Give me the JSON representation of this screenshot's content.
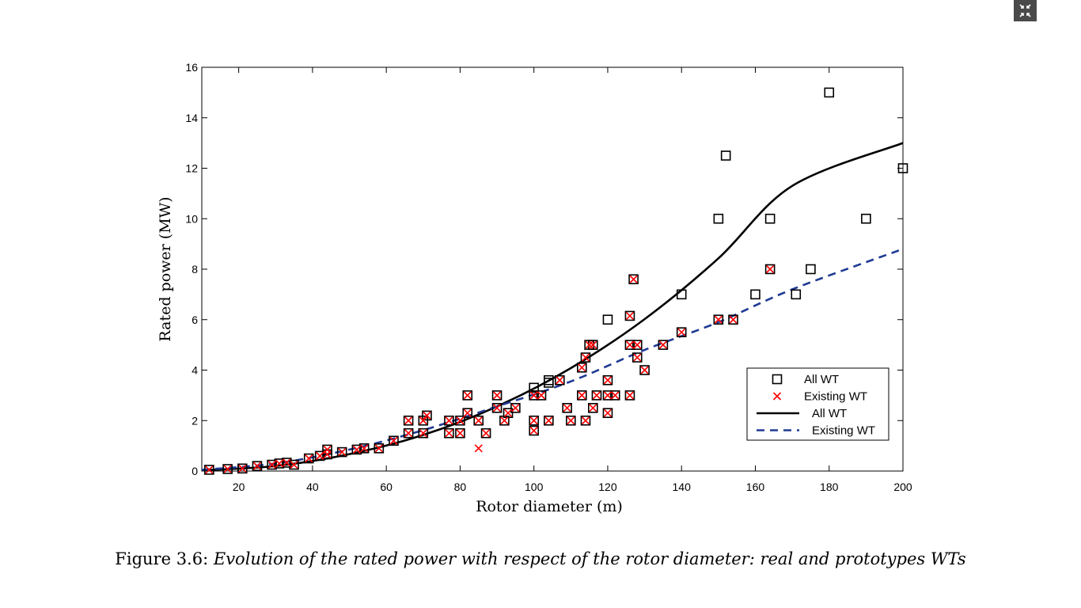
{
  "caption": {
    "prefix": "Figure 3.6:",
    "text": "Evolution of the rated power with respect of the rotor diameter: real and prototypes WTs"
  },
  "toolbar": {
    "exit_fullscreen_icon": "exit-fullscreen-icon"
  },
  "chart_data": {
    "type": "scatter",
    "xlabel": "Rotor diameter (m)",
    "ylabel": "Rated power (MW)",
    "xlim": [
      10,
      200
    ],
    "ylim": [
      0,
      16
    ],
    "xticks": [
      20,
      40,
      60,
      80,
      100,
      120,
      140,
      160,
      180,
      200
    ],
    "yticks": [
      0,
      2,
      4,
      6,
      8,
      10,
      12,
      14,
      16
    ],
    "grid": false,
    "legend_position": "lower-right",
    "legend": [
      {
        "label": "All WT",
        "marker": "square",
        "color": "#000000"
      },
      {
        "label": "Existing WT",
        "marker": "x",
        "color": "#ff0000"
      },
      {
        "label": "All WT",
        "marker": "line-solid",
        "color": "#000000"
      },
      {
        "label": "Existing WT",
        "marker": "line-dashed",
        "color": "#1f3a93"
      }
    ],
    "series": [
      {
        "name": "All WT",
        "kind": "points",
        "marker": "square",
        "color": "#000000",
        "points": [
          [
            12,
            0.05
          ],
          [
            17,
            0.08
          ],
          [
            21,
            0.1
          ],
          [
            25,
            0.2
          ],
          [
            29,
            0.25
          ],
          [
            31,
            0.3
          ],
          [
            33,
            0.33
          ],
          [
            35,
            0.25
          ],
          [
            39,
            0.5
          ],
          [
            42,
            0.6
          ],
          [
            44,
            0.85
          ],
          [
            44,
            0.66
          ],
          [
            48,
            0.75
          ],
          [
            52,
            0.85
          ],
          [
            54,
            0.9
          ],
          [
            58,
            0.9
          ],
          [
            62,
            1.2
          ],
          [
            66,
            1.5
          ],
          [
            66,
            2.0
          ],
          [
            70,
            1.5
          ],
          [
            70,
            2.0
          ],
          [
            71,
            2.2
          ],
          [
            77,
            1.5
          ],
          [
            77,
            2.0
          ],
          [
            80,
            2.0
          ],
          [
            80,
            1.5
          ],
          [
            82,
            3.0
          ],
          [
            82,
            2.3
          ],
          [
            85,
            2.0
          ],
          [
            87,
            1.5
          ],
          [
            90,
            2.5
          ],
          [
            90,
            3.0
          ],
          [
            92,
            2.0
          ],
          [
            93,
            2.3
          ],
          [
            95,
            2.5
          ],
          [
            100,
            3.0
          ],
          [
            100,
            3.3
          ],
          [
            100,
            2.0
          ],
          [
            100,
            1.6
          ],
          [
            102,
            3.0
          ],
          [
            104,
            3.5
          ],
          [
            104,
            3.6
          ],
          [
            104,
            2.0
          ],
          [
            107,
            3.6
          ],
          [
            109,
            2.5
          ],
          [
            110,
            2.0
          ],
          [
            113,
            4.1
          ],
          [
            113,
            3.0
          ],
          [
            114,
            2.0
          ],
          [
            114,
            4.5
          ],
          [
            115,
            5.0
          ],
          [
            116,
            5.0
          ],
          [
            116,
            2.5
          ],
          [
            117,
            3.0
          ],
          [
            120,
            6.0
          ],
          [
            120,
            3.6
          ],
          [
            120,
            3.0
          ],
          [
            120,
            2.3
          ],
          [
            122,
            3.0
          ],
          [
            126,
            6.15
          ],
          [
            126,
            5.0
          ],
          [
            126,
            3.0
          ],
          [
            127,
            7.6
          ],
          [
            128,
            5.0
          ],
          [
            128,
            4.5
          ],
          [
            130,
            4.0
          ],
          [
            135,
            5.0
          ],
          [
            140,
            7.0
          ],
          [
            140,
            5.5
          ],
          [
            150,
            10.0
          ],
          [
            150,
            6.0
          ],
          [
            152,
            12.5
          ],
          [
            154,
            6.0
          ],
          [
            160,
            7.0
          ],
          [
            164,
            10.0
          ],
          [
            164,
            8.0
          ],
          [
            171,
            7.0
          ],
          [
            175,
            8.0
          ],
          [
            180,
            15.0
          ],
          [
            190,
            10.0
          ],
          [
            200,
            12.0
          ]
        ]
      },
      {
        "name": "Existing WT",
        "kind": "points",
        "marker": "x",
        "color": "#ff0000",
        "points": [
          [
            12,
            0.05
          ],
          [
            17,
            0.08
          ],
          [
            21,
            0.1
          ],
          [
            25,
            0.2
          ],
          [
            29,
            0.25
          ],
          [
            31,
            0.3
          ],
          [
            33,
            0.33
          ],
          [
            35,
            0.25
          ],
          [
            39,
            0.5
          ],
          [
            42,
            0.6
          ],
          [
            44,
            0.85
          ],
          [
            44,
            0.66
          ],
          [
            48,
            0.75
          ],
          [
            52,
            0.85
          ],
          [
            54,
            0.9
          ],
          [
            58,
            0.9
          ],
          [
            62,
            1.2
          ],
          [
            66,
            1.5
          ],
          [
            66,
            2.0
          ],
          [
            70,
            1.5
          ],
          [
            70,
            2.0
          ],
          [
            71,
            2.2
          ],
          [
            77,
            1.5
          ],
          [
            77,
            2.0
          ],
          [
            80,
            2.0
          ],
          [
            80,
            1.5
          ],
          [
            82,
            3.0
          ],
          [
            82,
            2.3
          ],
          [
            85,
            0.9
          ],
          [
            85,
            2.0
          ],
          [
            87,
            1.5
          ],
          [
            90,
            2.5
          ],
          [
            90,
            3.0
          ],
          [
            92,
            2.0
          ],
          [
            93,
            2.3
          ],
          [
            95,
            2.5
          ],
          [
            100,
            3.0
          ],
          [
            100,
            2.0
          ],
          [
            100,
            1.6
          ],
          [
            102,
            3.0
          ],
          [
            104,
            2.0
          ],
          [
            107,
            3.6
          ],
          [
            109,
            2.5
          ],
          [
            110,
            2.0
          ],
          [
            113,
            4.1
          ],
          [
            113,
            3.0
          ],
          [
            114,
            2.0
          ],
          [
            114,
            4.5
          ],
          [
            115,
            5.0
          ],
          [
            116,
            5.0
          ],
          [
            116,
            2.5
          ],
          [
            117,
            3.0
          ],
          [
            120,
            3.6
          ],
          [
            120,
            3.0
          ],
          [
            120,
            2.3
          ],
          [
            122,
            3.0
          ],
          [
            126,
            6.15
          ],
          [
            126,
            5.0
          ],
          [
            126,
            3.0
          ],
          [
            127,
            7.6
          ],
          [
            128,
            5.0
          ],
          [
            128,
            4.5
          ],
          [
            130,
            4.0
          ],
          [
            135,
            5.0
          ],
          [
            140,
            5.5
          ],
          [
            150,
            6.0
          ],
          [
            154,
            6.0
          ],
          [
            164,
            8.0
          ]
        ]
      },
      {
        "name": "All WT",
        "kind": "curve",
        "style": "solid",
        "color": "#000000",
        "points": [
          [
            10,
            0.03
          ],
          [
            30,
            0.2
          ],
          [
            50,
            0.67
          ],
          [
            70,
            1.43
          ],
          [
            90,
            2.56
          ],
          [
            110,
            4.08
          ],
          [
            130,
            6.02
          ],
          [
            150,
            8.43
          ],
          [
            170,
            11.3
          ],
          [
            200,
            13.0
          ]
        ]
      },
      {
        "name": "Existing WT",
        "kind": "curve",
        "style": "dashed",
        "color": "#1f3a93",
        "points": [
          [
            10,
            0.05
          ],
          [
            30,
            0.3
          ],
          [
            50,
            0.85
          ],
          [
            70,
            1.62
          ],
          [
            90,
            2.56
          ],
          [
            110,
            3.55
          ],
          [
            130,
            4.8
          ],
          [
            150,
            5.9
          ],
          [
            170,
            7.2
          ],
          [
            200,
            8.8
          ]
        ]
      }
    ]
  }
}
